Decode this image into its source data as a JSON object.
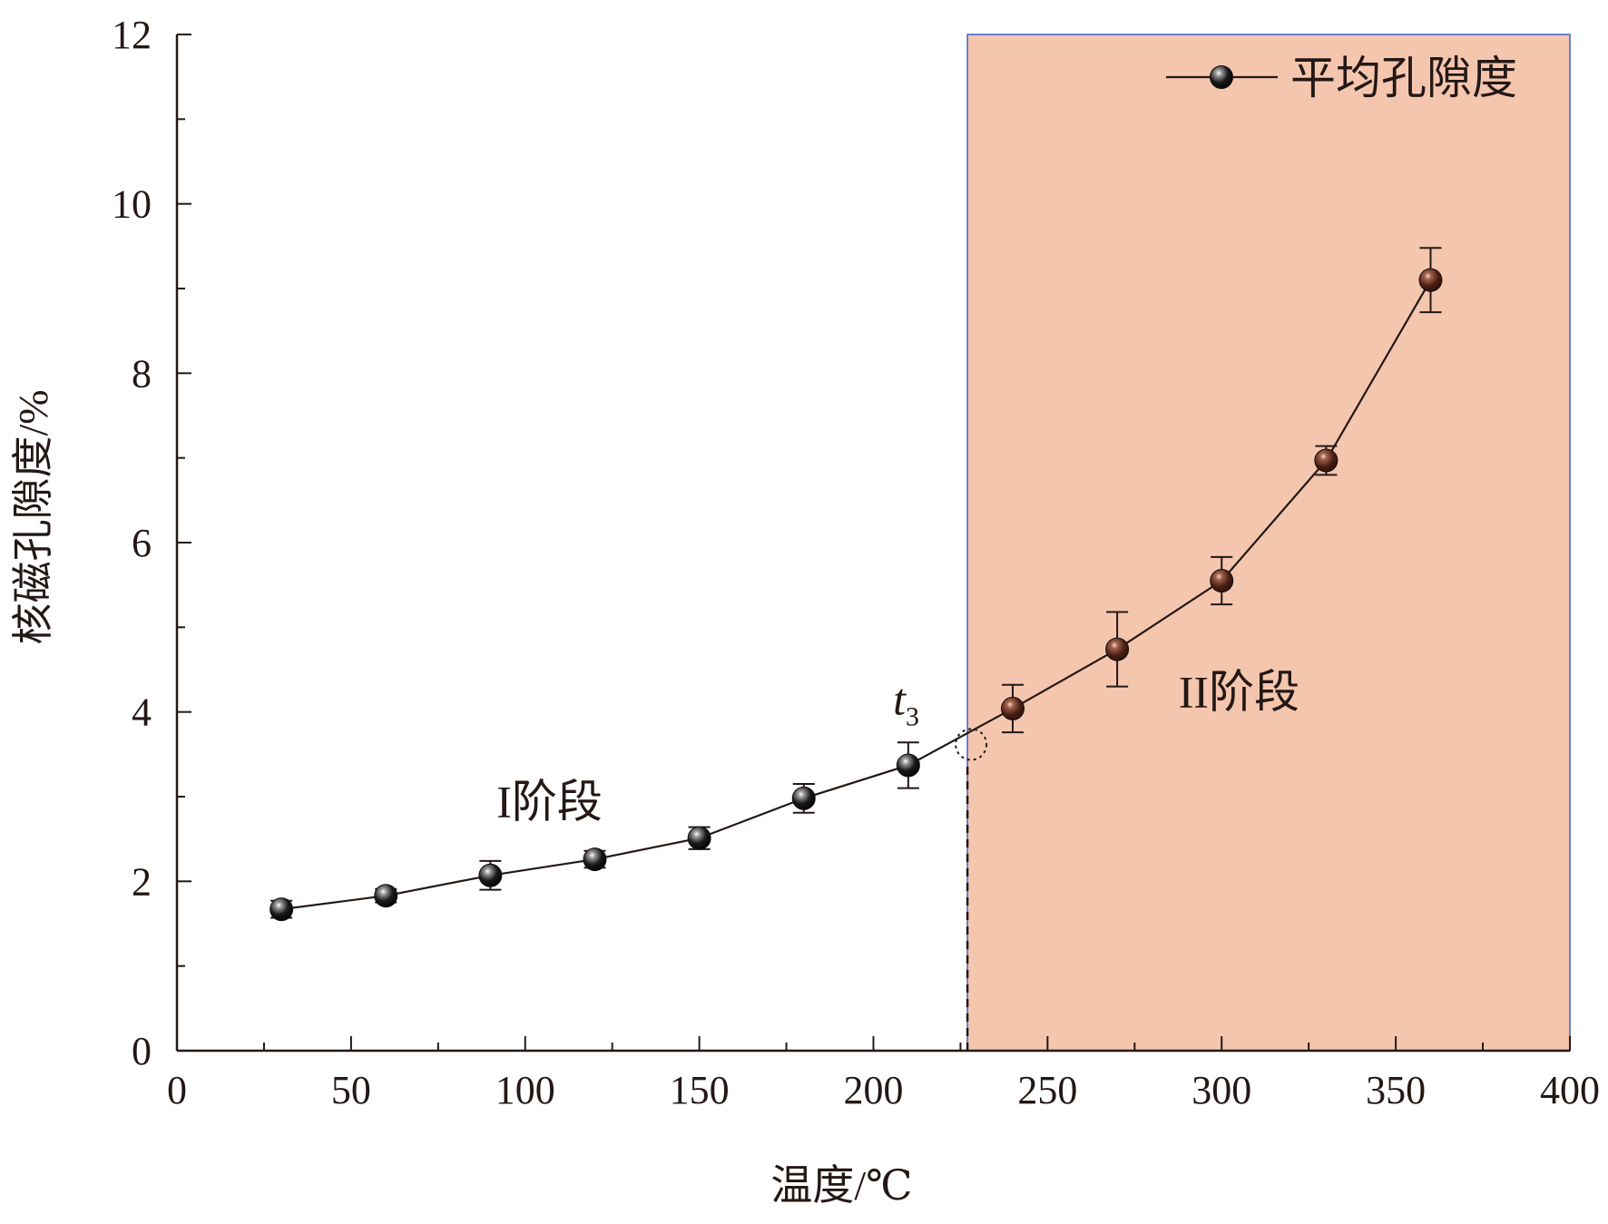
{
  "chart_data": {
    "type": "line",
    "xlabel": "温度/℃",
    "ylabel": "核磁孔隙度/%",
    "xlim": [
      0,
      400
    ],
    "ylim": [
      0,
      12
    ],
    "xticks": [
      "0",
      "50",
      "100",
      "150",
      "200",
      "250",
      "300",
      "350",
      "400"
    ],
    "yticks": [
      "0",
      "2",
      "4",
      "6",
      "8",
      "10",
      "12"
    ],
    "grid": false,
    "legend": {
      "position": "top-right",
      "entries": [
        "平均孔隙度"
      ]
    },
    "series": [
      {
        "name": "平均孔隙度",
        "x": [
          30,
          60,
          90,
          120,
          150,
          180,
          210,
          240,
          270,
          300,
          330,
          360
        ],
        "y": [
          1.67,
          1.83,
          2.07,
          2.26,
          2.51,
          2.98,
          3.37,
          4.04,
          4.74,
          5.55,
          6.97,
          9.1
        ],
        "error": [
          0.1,
          0.08,
          0.17,
          0.1,
          0.13,
          0.17,
          0.27,
          0.28,
          0.44,
          0.28,
          0.17,
          0.38
        ]
      }
    ],
    "shaded_region": {
      "x_start": 227,
      "x_end": 400,
      "color": "#f5c6ae"
    },
    "threshold": {
      "x": 227,
      "y": 3.67,
      "label": "t",
      "label_subscript": "3"
    },
    "annotations": [
      {
        "text": "I阶段",
        "x": 107,
        "y": 2.95
      },
      {
        "text": "II阶段",
        "x": 305,
        "y": 4.25
      }
    ],
    "marker_colors": {
      "stage1": "#000000",
      "stage2": "#4a1f14"
    }
  }
}
